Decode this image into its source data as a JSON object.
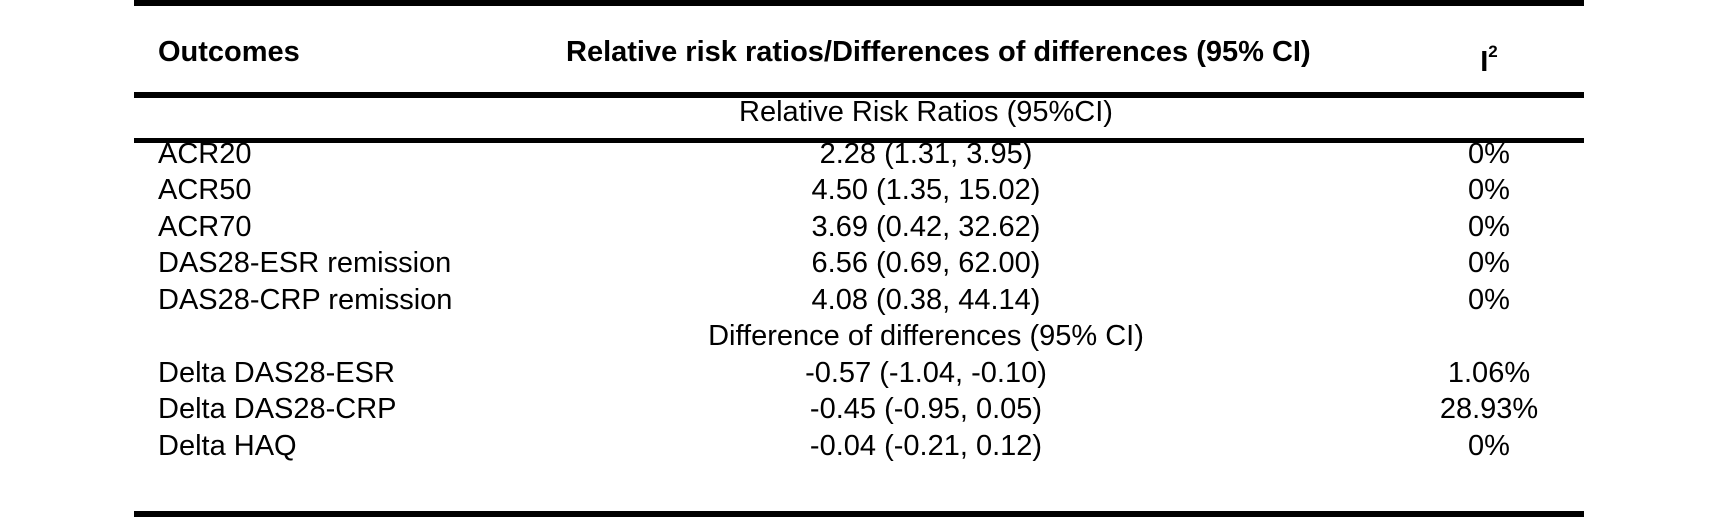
{
  "table": {
    "header": {
      "outcomes": "Outcomes",
      "ratios": "Relative risk ratios/Differences of differences (95% CI)",
      "i2_base": "I",
      "i2_sup": "2"
    },
    "sections": [
      {
        "label": "Relative Risk Ratios (95%CI)",
        "rows": [
          {
            "outcome": "ACR20",
            "value": "2.28 (1.31, 3.95)",
            "i2": "0%"
          },
          {
            "outcome": "ACR50",
            "value": "4.50 (1.35, 15.02)",
            "i2": "0%"
          },
          {
            "outcome": "ACR70",
            "value": "3.69 (0.42, 32.62)",
            "i2": "0%"
          },
          {
            "outcome": "DAS28-ESR remission",
            "value": "6.56 (0.69, 62.00)",
            "i2": "0%"
          },
          {
            "outcome": "DAS28-CRP remission",
            "value": "4.08 (0.38, 44.14)",
            "i2": "0%"
          }
        ]
      },
      {
        "label": "Difference of differences (95% CI)",
        "rows": [
          {
            "outcome": "Delta DAS28-ESR",
            "value": "-0.57 (-1.04, -0.10)",
            "i2": "1.06%"
          },
          {
            "outcome": "Delta DAS28-CRP",
            "value": "-0.45 (-0.95, 0.05)",
            "i2": "28.93%"
          },
          {
            "outcome": "Delta HAQ",
            "value": "-0.04 (-0.21, 0.12)",
            "i2": "0%"
          }
        ]
      }
    ]
  }
}
